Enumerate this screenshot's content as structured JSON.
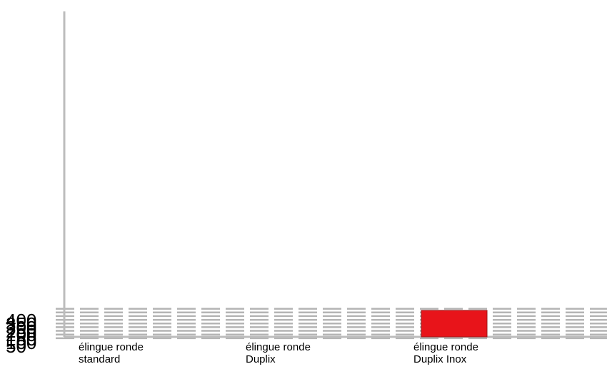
{
  "chart_data": {
    "type": "bar",
    "title": "",
    "xlabel": "",
    "ylabel": "",
    "categories": [
      "élingue ronde\nstandard",
      "élingue ronde\nDuplix",
      "élingue ronde\nDuplix Inox"
    ],
    "values": [
      33,
      49,
      428
    ],
    "ylim": [
      0,
      450
    ],
    "yticks": [
      50,
      100,
      150,
      200,
      250,
      300,
      350,
      400
    ],
    "gridlines": [
      50,
      100,
      150,
      200,
      250,
      300,
      350,
      400,
      450
    ],
    "grid": true,
    "grid_style": "dashed",
    "legend": "none",
    "colors": {
      "bar": "#e8141a",
      "bar_border": "#9a1a1a",
      "grid": "#b4b4b4",
      "axis": "#bcbcbc"
    }
  }
}
